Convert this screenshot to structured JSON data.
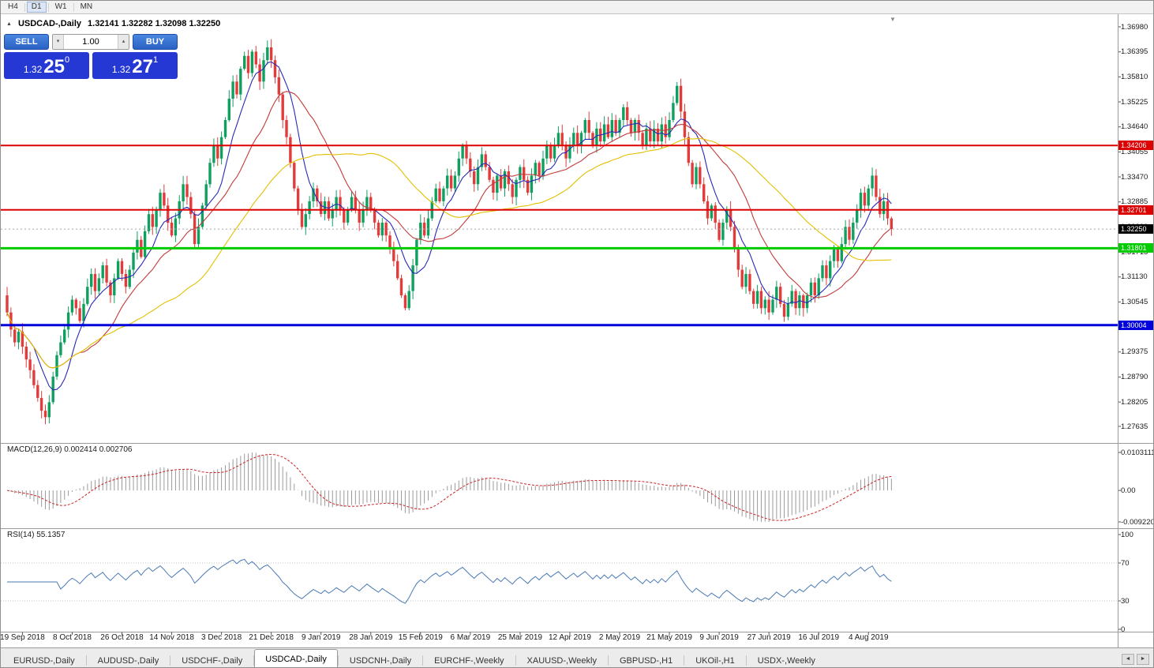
{
  "icons": {
    "title-arrow-icon": "▲",
    "shift-marker-icon": "▼",
    "volume-down-icon": "▾",
    "volume-up-icon": "▴",
    "tabs-scroll-left-icon": "◄",
    "tabs-scroll-right-icon": "►"
  },
  "toolbar": {
    "timeframes": [
      {
        "label": "H4",
        "active": false
      },
      {
        "label": "D1",
        "active": true
      },
      {
        "label": "W1",
        "active": false
      },
      {
        "label": "MN",
        "active": false
      }
    ]
  },
  "chart_header": {
    "symbol": "USDCAD-,Daily",
    "ohlc": "1.32141 1.32282 1.32098 1.32250"
  },
  "trade_panel": {
    "sell_label": "SELL",
    "buy_label": "BUY",
    "volume": "1.00",
    "sell_price": {
      "prefix": "1.32",
      "pips": "25",
      "sup": "0"
    },
    "buy_price": {
      "prefix": "1.32",
      "pips": "27",
      "sup": "1"
    },
    "button_color": "#2f6fd8",
    "price_bg_color": "#2638d4"
  },
  "price_axis": {
    "max": 1.3698,
    "min": 1.27635,
    "ticks": [
      "1.36980",
      "1.36395",
      "1.35810",
      "1.35225",
      "1.34640",
      "1.34055",
      "1.33470",
      "1.32885",
      "1.32300",
      "1.31715",
      "1.31130",
      "1.30545",
      "1.29960",
      "1.29375",
      "1.28790",
      "1.28205",
      "1.27635"
    ]
  },
  "hlines": [
    {
      "label": "1.34206",
      "value": 1.34206,
      "color": "#dd0000",
      "width": 2
    },
    {
      "label": "1.32701",
      "value": 1.32701,
      "color": "#dd0000",
      "width": 2
    },
    {
      "label": "1.31801",
      "value": 1.31801,
      "color": "#00cc00",
      "width": 3
    },
    {
      "label": "1.30004",
      "value": 1.30004,
      "color": "#0000dd",
      "width": 3
    }
  ],
  "current_price": {
    "label": "1.32250",
    "value": 1.3225,
    "bg": "#000000"
  },
  "macd_panel": {
    "label": "MACD(12,26,9) 0.002414 0.002706",
    "axis_top": "0.0103111",
    "axis_zero": "0.00",
    "axis_bottom": "-0.0092203"
  },
  "rsi_panel": {
    "label": "RSI(14) 55.1357",
    "axis": [
      100,
      70,
      30,
      0
    ],
    "levels": [
      70,
      30
    ]
  },
  "time_axis": [
    "19 Sep 2018",
    "8 Oct 2018",
    "26 Oct 2018",
    "14 Nov 2018",
    "3 Dec 2018",
    "21 Dec 2018",
    "9 Jan 2019",
    "28 Jan 2019",
    "15 Feb 2019",
    "6 Mar 2019",
    "25 Mar 2019",
    "12 Apr 2019",
    "2 May 2019",
    "21 May 2019",
    "9 Jun 2019",
    "27 Jun 2019",
    "16 Jul 2019",
    "4 Aug 2019"
  ],
  "tabs": {
    "items": [
      {
        "label": "EURUSD-,Daily",
        "active": false
      },
      {
        "label": "AUDUSD-,Daily",
        "active": false
      },
      {
        "label": "USDCHF-,Daily",
        "active": false
      },
      {
        "label": "USDCAD-,Daily",
        "active": true
      },
      {
        "label": "USDCNH-,Daily",
        "active": false
      },
      {
        "label": "EURCHF-,Weekly",
        "active": false
      },
      {
        "label": "XAUUSD-,Weekly",
        "active": false
      },
      {
        "label": "GBPUSD-,H1",
        "active": false
      },
      {
        "label": "UKOil-,H1",
        "active": false
      },
      {
        "label": "USDX-,Weekly",
        "active": false
      }
    ]
  },
  "chart_data": {
    "type": "candlestick",
    "symbol": "USDCAD",
    "timeframe": "Daily",
    "title": "USDCAD-,Daily",
    "last_ohlc": {
      "open": 1.32141,
      "high": 1.32282,
      "low": 1.32098,
      "close": 1.3225
    },
    "price_axis_range": [
      1.27635,
      1.3698
    ],
    "x_labels": [
      "19 Sep 2018",
      "8 Oct 2018",
      "26 Oct 2018",
      "14 Nov 2018",
      "3 Dec 2018",
      "21 Dec 2018",
      "9 Jan 2019",
      "28 Jan 2019",
      "15 Feb 2019",
      "6 Mar 2019",
      "25 Mar 2019",
      "12 Apr 2019",
      "2 May 2019",
      "21 May 2019",
      "9 Jun 2019",
      "27 Jun 2019",
      "16 Jul 2019",
      "4 Aug 2019"
    ],
    "bars_per_label_gap": 13,
    "first_label_bar_index": 4,
    "closes": [
      1.303,
      1.299,
      1.296,
      1.2985,
      1.295,
      1.292,
      1.2895,
      1.286,
      1.283,
      1.28,
      1.2785,
      1.282,
      1.288,
      1.293,
      1.296,
      1.299,
      1.303,
      1.306,
      1.304,
      1.301,
      1.305,
      1.309,
      1.312,
      1.308,
      1.311,
      1.314,
      1.31,
      1.307,
      1.311,
      1.315,
      1.312,
      1.309,
      1.313,
      1.317,
      1.32,
      1.316,
      1.322,
      1.326,
      1.323,
      1.327,
      1.331,
      1.328,
      1.324,
      1.321,
      1.325,
      1.329,
      1.333,
      1.33,
      1.326,
      1.319,
      1.323,
      1.328,
      1.333,
      1.338,
      1.342,
      1.339,
      1.344,
      1.348,
      1.353,
      1.357,
      1.354,
      1.36,
      1.363,
      1.359,
      1.364,
      1.361,
      1.357,
      1.362,
      1.365,
      1.362,
      1.358,
      1.354,
      1.348,
      1.344,
      1.338,
      1.332,
      1.327,
      1.323,
      1.326,
      1.329,
      1.332,
      1.329,
      1.326,
      1.329,
      1.325,
      1.327,
      1.33,
      1.327,
      1.324,
      1.327,
      1.33,
      1.327,
      1.324,
      1.327,
      1.33,
      1.327,
      1.324,
      1.321,
      1.324,
      1.321,
      1.318,
      1.315,
      1.311,
      1.307,
      1.304,
      1.308,
      1.314,
      1.32,
      1.324,
      1.321,
      1.325,
      1.329,
      1.332,
      1.329,
      1.332,
      1.335,
      1.332,
      1.335,
      1.339,
      1.342,
      1.339,
      1.336,
      1.333,
      1.337,
      1.34,
      1.337,
      1.334,
      1.331,
      1.335,
      1.332,
      1.336,
      1.333,
      1.33,
      1.334,
      1.337,
      1.334,
      1.331,
      1.335,
      1.338,
      1.335,
      1.339,
      1.342,
      1.339,
      1.342,
      1.345,
      1.342,
      1.339,
      1.342,
      1.345,
      1.342,
      1.345,
      1.348,
      1.345,
      1.342,
      1.346,
      1.343,
      1.347,
      1.344,
      1.348,
      1.345,
      1.348,
      1.351,
      1.348,
      1.345,
      1.348,
      1.345,
      1.342,
      1.346,
      1.343,
      1.346,
      1.343,
      1.347,
      1.344,
      1.348,
      1.352,
      1.356,
      1.35,
      1.344,
      1.338,
      1.333,
      1.337,
      1.333,
      1.329,
      1.325,
      1.328,
      1.324,
      1.32,
      1.324,
      1.327,
      1.323,
      1.318,
      1.313,
      1.309,
      1.312,
      1.308,
      1.305,
      1.308,
      1.304,
      1.306,
      1.303,
      1.306,
      1.309,
      1.305,
      1.302,
      1.305,
      1.308,
      1.304,
      1.307,
      1.304,
      1.307,
      1.31,
      1.307,
      1.311,
      1.314,
      1.311,
      1.315,
      1.318,
      1.315,
      1.319,
      1.323,
      1.32,
      1.324,
      1.327,
      1.331,
      1.328,
      1.332,
      1.335,
      1.33,
      1.326,
      1.329,
      1.325,
      1.3225
    ],
    "candle_up_color": "#0fa05f",
    "candle_down_color": "#e23b3b",
    "moving_averages": [
      {
        "name": "fast",
        "period": 8,
        "color": "#2929b8"
      },
      {
        "name": "medium",
        "period": 20,
        "color": "#c23a3a"
      },
      {
        "name": "slow",
        "period": 45,
        "color": "#e3c000"
      }
    ],
    "horizontal_lines": [
      {
        "value": 1.34206,
        "color": "#dd0000"
      },
      {
        "value": 1.32701,
        "color": "#dd0000"
      },
      {
        "value": 1.31801,
        "color": "#00cc00"
      },
      {
        "value": 1.30004,
        "color": "#0000dd"
      }
    ],
    "last_price": 1.3225,
    "indicators": [
      {
        "type": "MACD",
        "fast": 12,
        "slow": 26,
        "signal": 9,
        "current_value": 0.002414,
        "current_signal": 0.002706,
        "axis_labels": [
          "0.0103111",
          "0.00",
          "-0.0092203"
        ],
        "histogram_color": "#9a9a9a",
        "signal_color": "#cc2222"
      },
      {
        "type": "RSI",
        "period": 14,
        "current_value": 55.1357,
        "levels": [
          70,
          30
        ],
        "axis_labels": [
          100,
          70,
          30,
          0
        ],
        "line_color": "#4a7ab5"
      }
    ]
  }
}
